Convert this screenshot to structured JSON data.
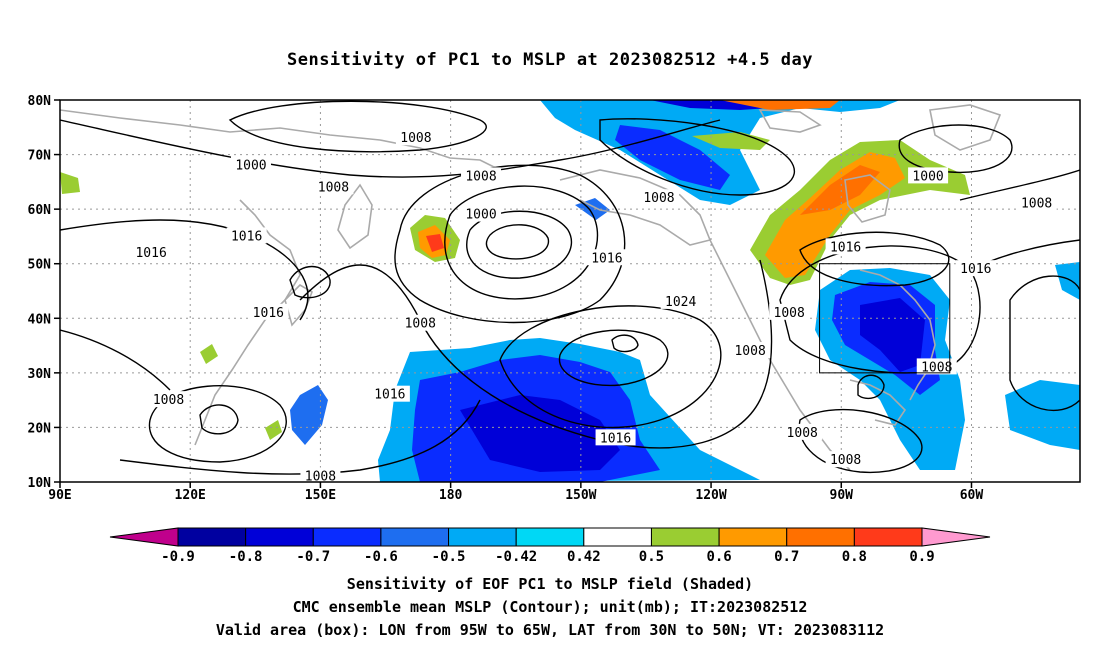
{
  "title": "Sensitivity of PC1 to MSLP at 2023082512 +4.5 day",
  "axes": {
    "lat_ticks": [
      "80N",
      "70N",
      "60N",
      "50N",
      "40N",
      "30N",
      "20N",
      "10N"
    ],
    "lon_ticks": [
      "90E",
      "120E",
      "150E",
      "180",
      "150W",
      "120W",
      "90W",
      "60W"
    ]
  },
  "colorbar": {
    "labels": [
      "-0.9",
      "-0.8",
      "-0.7",
      "-0.6",
      "-0.5",
      "-0.42",
      "0.42",
      "0.5",
      "0.6",
      "0.7",
      "0.8",
      "0.9"
    ],
    "colors": [
      "#c0008c",
      "#0000a0",
      "#0000d8",
      "#0a2cff",
      "#1e6ef0",
      "#00aaf5",
      "#00d8f5",
      "#ffffff",
      "#9acd32",
      "#ff9a00",
      "#ff7000",
      "#ff3a1a",
      "#ff0000",
      "#ff9ad0"
    ]
  },
  "contour_labels": [
    {
      "text": "1008",
      "lon": 172,
      "lat": 73
    },
    {
      "text": "1000",
      "lon": 134,
      "lat": 68
    },
    {
      "text": "1008",
      "lon": 153,
      "lat": 64
    },
    {
      "text": "1008",
      "lon": 187,
      "lat": 66
    },
    {
      "text": "1008",
      "lon": 228,
      "lat": 62
    },
    {
      "text": "1000",
      "lon": 187,
      "lat": 59
    },
    {
      "text": "1016",
      "lon": 111,
      "lat": 52
    },
    {
      "text": "1016",
      "lon": 133,
      "lat": 55
    },
    {
      "text": "1016",
      "lon": 138,
      "lat": 41
    },
    {
      "text": "1008",
      "lon": 173,
      "lat": 39
    },
    {
      "text": "1016",
      "lon": 216,
      "lat": 51
    },
    {
      "text": "1024",
      "lon": 233,
      "lat": 43
    },
    {
      "text": "1008",
      "lon": 249,
      "lat": 34
    },
    {
      "text": "1008",
      "lon": 258,
      "lat": 41
    },
    {
      "text": "1016",
      "lon": 271,
      "lat": 53
    },
    {
      "text": "1000",
      "lon": 290,
      "lat": 66
    },
    {
      "text": "1008",
      "lon": 315,
      "lat": 61
    },
    {
      "text": "1016",
      "lon": 301,
      "lat": 49
    },
    {
      "text": "1008",
      "lon": 292,
      "lat": 31
    },
    {
      "text": "1016",
      "lon": 166,
      "lat": 26
    },
    {
      "text": "1016",
      "lon": 218,
      "lat": 18
    },
    {
      "text": "1008",
      "lon": 115,
      "lat": 25
    },
    {
      "text": "1008",
      "lon": 150,
      "lat": 11
    },
    {
      "text": "1008",
      "lon": 261,
      "lat": 19
    },
    {
      "text": "1008",
      "lon": 271,
      "lat": 14
    }
  ],
  "valid_box": {
    "lon_min": -95,
    "lon_max": -65,
    "lat_min": 30,
    "lat_max": 50
  },
  "captions": {
    "line1": "Sensitivity of EOF PC1 to MSLP field (Shaded)",
    "line2": "CMC ensemble mean MSLP (Contour); unit(mb); IT:2023082512",
    "line3": "Valid area (box): LON from 95W to 65W, LAT from 30N to 50N; VT: 2023083112"
  }
}
